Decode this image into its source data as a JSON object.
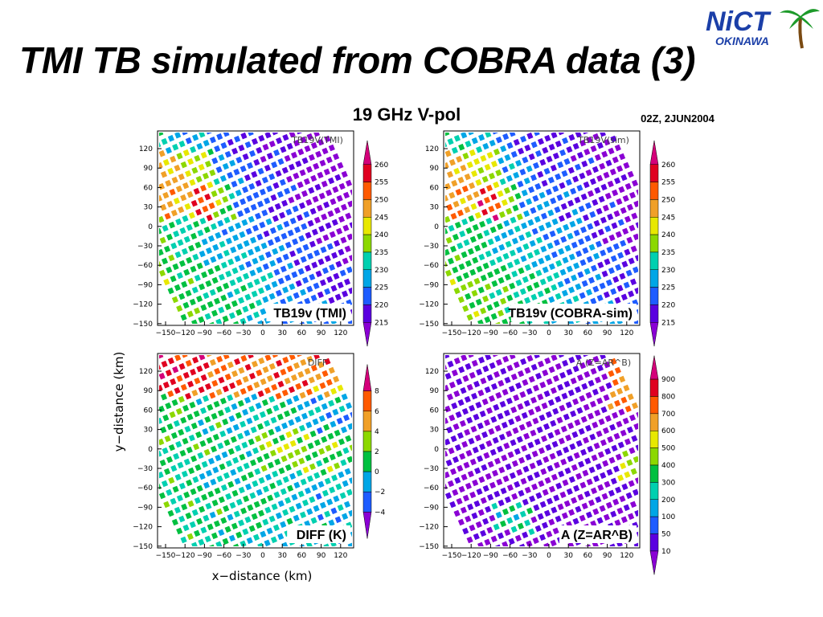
{
  "slide": {
    "title": "TMI TB simulated from COBRA data (3)",
    "subtitle": "19 GHz V-pol",
    "timestamp": "02Z, 2JUN2004",
    "logo": {
      "main": "NiCT",
      "sub": "OKINAWA",
      "icon": "palm-tree-icon"
    }
  },
  "chart_data": [
    {
      "type": "scatter",
      "title": "TB19v (TMI)",
      "inner_title": "TB19V(TMI)",
      "xlabel": "",
      "ylabel": "",
      "xlim": [
        -150,
        150
      ],
      "ylim": [
        -150,
        150
      ],
      "xticks": [
        "-150",
        "-120",
        "-90",
        "-60",
        "-30",
        "0",
        "30",
        "60",
        "90",
        "120"
      ],
      "yticks": [
        "120",
        "90",
        "60",
        "30",
        "0",
        "-30",
        "-60",
        "-90",
        "-120",
        "-150"
      ],
      "colorbar": {
        "labels": [
          "260",
          "255",
          "250",
          "245",
          "240",
          "235",
          "230",
          "225",
          "220",
          "215"
        ]
      },
      "field": "tb_tmi",
      "description_values": {
        "min": 215,
        "max": 262
      }
    },
    {
      "type": "scatter",
      "title": "TB19v (COBRA-sim)",
      "inner_title": "TB19V(sim)",
      "xlabel": "",
      "ylabel": "",
      "xlim": [
        -150,
        150
      ],
      "ylim": [
        -150,
        150
      ],
      "xticks": [
        "-150",
        "-120",
        "-90",
        "-60",
        "-30",
        "0",
        "30",
        "60",
        "90",
        "120"
      ],
      "yticks": [
        "120",
        "90",
        "60",
        "30",
        "0",
        "-30",
        "-60",
        "-90",
        "-120",
        "-150"
      ],
      "colorbar": {
        "labels": [
          "260",
          "255",
          "250",
          "245",
          "240",
          "235",
          "230",
          "225",
          "220",
          "215"
        ]
      },
      "field": "tb_sim",
      "description_values": {
        "min": 215,
        "max": 262
      }
    },
    {
      "type": "scatter",
      "title": "DIFF (K)",
      "inner_title": "DIFF",
      "xlabel": "x−distance (km)",
      "ylabel": "y−distance (km)",
      "xlim": [
        -150,
        150
      ],
      "ylim": [
        -150,
        150
      ],
      "xticks": [
        "-150",
        "-120",
        "-90",
        "-60",
        "-30",
        "0",
        "30",
        "60",
        "90",
        "120"
      ],
      "yticks": [
        "120",
        "90",
        "60",
        "30",
        "0",
        "-30",
        "-60",
        "-90",
        "-120",
        "-150"
      ],
      "colorbar": {
        "labels": [
          "8",
          "6",
          "4",
          "2",
          "0",
          "-2",
          "-4"
        ]
      },
      "field": "diff",
      "description_values": {
        "min": -4,
        "max": 8
      }
    },
    {
      "type": "scatter",
      "title": "A (Z=AR^B)",
      "inner_title": "A (Z=AR^B)",
      "xlabel": "",
      "ylabel": "",
      "xlim": [
        -150,
        150
      ],
      "ylim": [
        -150,
        150
      ],
      "xticks": [
        "-150",
        "-120",
        "-90",
        "-60",
        "-30",
        "0",
        "30",
        "60",
        "90",
        "120"
      ],
      "yticks": [
        "120",
        "90",
        "60",
        "30",
        "0",
        "-30",
        "-60",
        "-90",
        "-120",
        "-150"
      ],
      "colorbar": {
        "labels": [
          "900",
          "800",
          "700",
          "600",
          "500",
          "400",
          "300",
          "200",
          "100",
          "50",
          "10"
        ]
      },
      "field": "a_coef",
      "description_values": {
        "min": 10,
        "max": 900
      }
    }
  ],
  "colors": {
    "palette": [
      "#8a00d4",
      "#5a00e0",
      "#1e5cff",
      "#00a6e6",
      "#00d0b0",
      "#00c040",
      "#8cd800",
      "#e8e800",
      "#f0a028",
      "#ff5a00",
      "#e00020",
      "#d4007a"
    ]
  }
}
